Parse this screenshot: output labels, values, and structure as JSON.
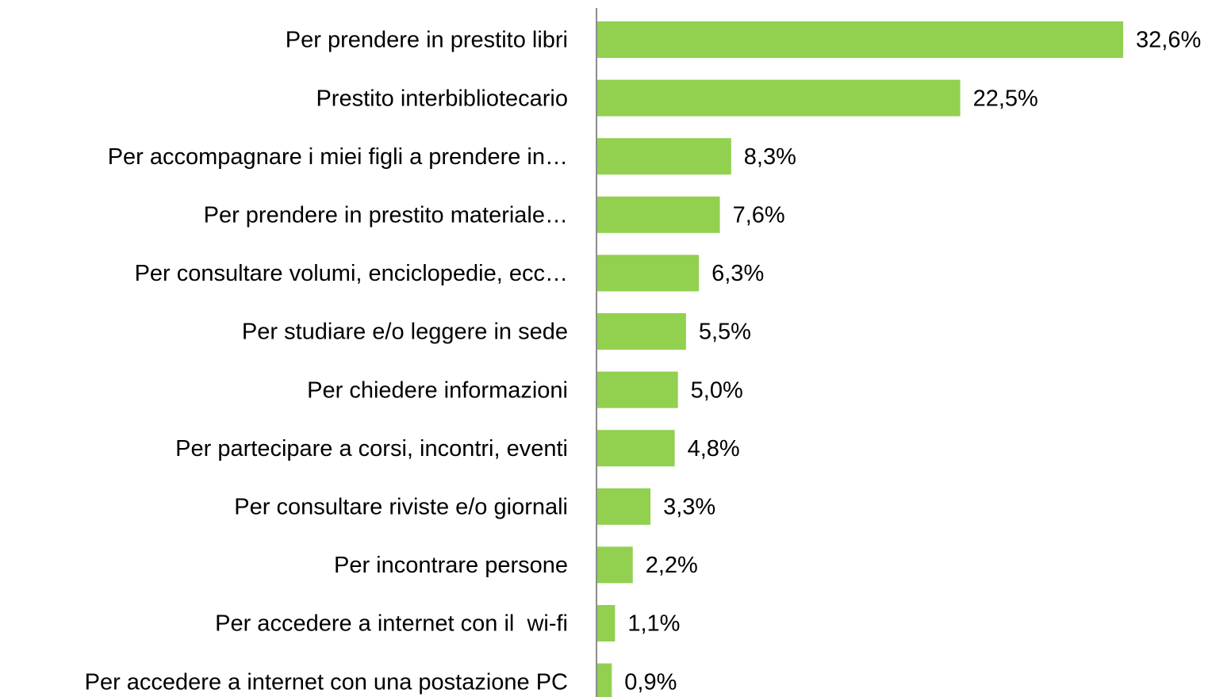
{
  "chart_data": {
    "type": "hbar",
    "categories": [
      "Per prendere in prestito libri",
      "Prestito interbibliotecario",
      "Per accompagnare i miei figli a prendere in…",
      "Per prendere in prestito materiale…",
      "Per consultare volumi, enciclopedie, ecc…",
      "Per studiare e/o leggere in sede",
      "Per chiedere informazioni",
      "Per partecipare a corsi, incontri, eventi",
      "Per consultare riviste e/o giornali",
      "Per incontrare persone",
      "Per accedere a internet con il  wi-fi",
      "Per accedere a internet con una postazione PC"
    ],
    "values": [
      32.6,
      22.5,
      8.3,
      7.6,
      6.3,
      5.5,
      5.0,
      4.8,
      3.3,
      2.2,
      1.1,
      0.9
    ],
    "value_labels": [
      "32,6%",
      "22,5%",
      "8,3%",
      "7,6%",
      "6,3%",
      "5,5%",
      "5,0%",
      "4,8%",
      "3,3%",
      "2,2%",
      "1,1%",
      "0,9%"
    ],
    "color": "#92d050"
  }
}
